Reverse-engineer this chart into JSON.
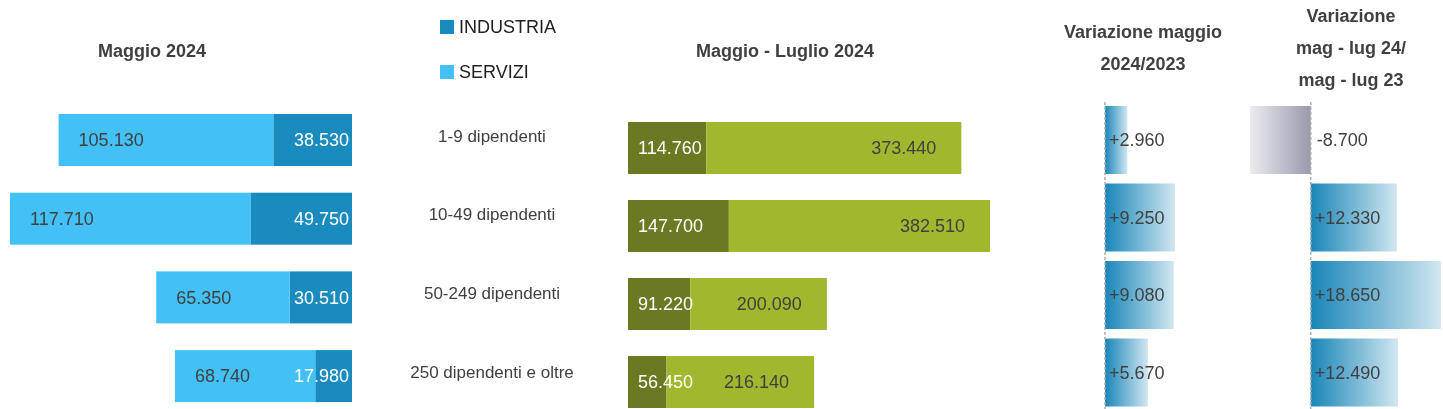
{
  "chart_data": [
    {
      "type": "bar",
      "orientation": "horizontal",
      "stacked": true,
      "title": "Maggio 2024",
      "legend": "top right",
      "categories": [
        "1-9 dipendenti",
        "10-49 dipendenti",
        "50-249 dipendenti",
        "250 dipendenti e oltre"
      ],
      "series": [
        {
          "name": "INDUSTRIA",
          "color": "#1a8bbf",
          "values": [
            38530,
            49750,
            30510,
            17980
          ],
          "value_labels": [
            "38.530",
            "49.750",
            "30.510",
            "17.980"
          ]
        },
        {
          "name": "SERVIZI",
          "color": "#43c1f7",
          "values": [
            105130,
            117710,
            65350,
            68740
          ],
          "value_labels": [
            "105.130",
            "117.710",
            "65.350",
            "68.740"
          ]
        }
      ]
    },
    {
      "type": "bar",
      "orientation": "horizontal",
      "stacked": true,
      "title": "Maggio  - Luglio 2024",
      "categories": [
        null,
        null,
        null,
        null
      ],
      "series": [
        {
          "color": "#6b7a22",
          "values": [
            114760,
            147700,
            91220,
            56450
          ],
          "value_labels": [
            "114.760",
            "147.700",
            "91.220",
            "56.450"
          ]
        },
        {
          "color": "#a1b72e",
          "values": [
            373440,
            382510,
            200090,
            216140
          ],
          "value_labels": [
            "373.440",
            "382.510",
            "200.090",
            "216.140"
          ]
        }
      ]
    },
    {
      "type": "bar",
      "orientation": "horizontal",
      "title": "Variazione maggio 2024/2023",
      "categories": [
        null,
        null,
        null,
        null
      ],
      "ref_lines": [
        {
          "axis": "x",
          "value": 0,
          "color": "#b0b0b0",
          "line_style": "dashed"
        }
      ],
      "values": [
        2960,
        9250,
        9080,
        5670
      ],
      "colors": [
        "#1a86b8",
        "#1a86b8",
        "#1a86b8",
        "#1a86b8"
      ],
      "value_labels": [
        "+2.960",
        "+9.250",
        "+9.080",
        "+5.670"
      ]
    },
    {
      "type": "bar",
      "orientation": "horizontal",
      "title": "Variazione mag - lug 24/ mag - lug 23",
      "categories": [
        null,
        null,
        null,
        null
      ],
      "ref_lines": [
        {
          "axis": "x",
          "value": 0,
          "color": "#b0b0b0",
          "line_style": "dashed"
        }
      ],
      "values": [
        -8700,
        12330,
        18650,
        12490
      ],
      "colors": [
        "#9a9aae",
        "#1a86b8",
        "#1a86b8",
        "#1a86b8"
      ],
      "value_labels": [
        "-8.700",
        "+12.330",
        "+18.650",
        "+12.490"
      ]
    }
  ]
}
